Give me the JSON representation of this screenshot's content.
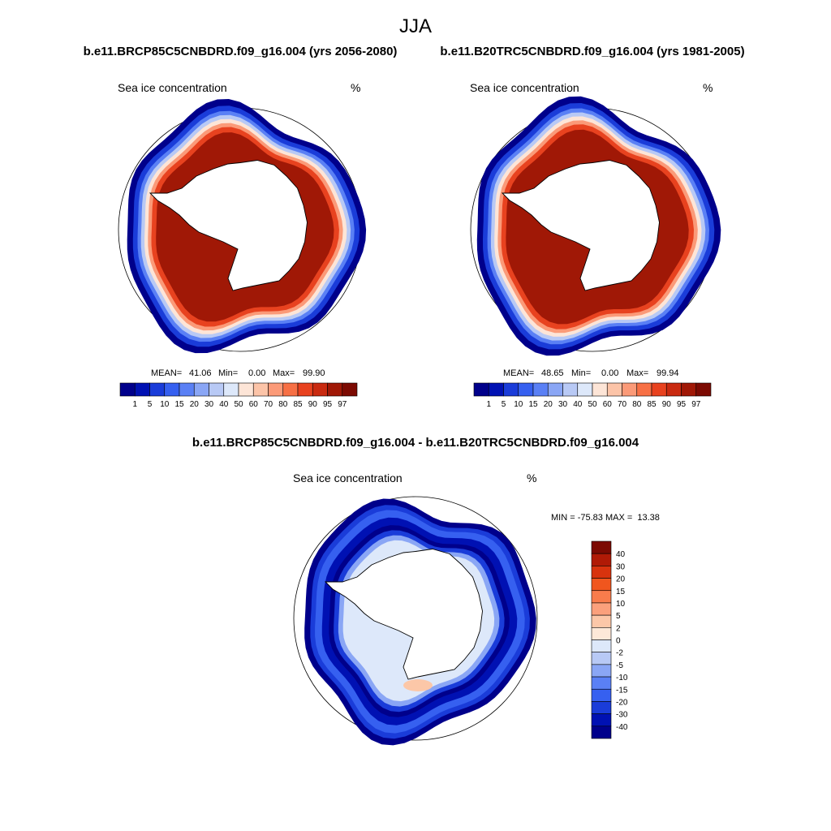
{
  "page": {
    "season_title": "JJA",
    "panel_left_title": "b.e11.BRCP85C5CNBDRD.f09_g16.004 (yrs 2056-2080)",
    "panel_right_title": "b.e11.B20TRC5CNBDRD.f09_g16.004 (yrs 1981-2005)",
    "panel_diff_title": "b.e11.BRCP85C5CNBDRD.f09_g16.004 - b.e11.B20TRC5CNBDRD.f09_g16.004"
  },
  "chart_data": [
    {
      "type": "heatmap",
      "projection": "south-polar-stereographic",
      "title": "b.e11.BRCP85C5CNBDRD.f09_g16.004 (yrs 2056-2080)",
      "variable_label": "Sea ice concentration",
      "units": "%",
      "stats": {
        "mean_label": "MEAN=",
        "mean": "41.06",
        "min_label": "Min=",
        "min": "0.00",
        "max_label": "Max=",
        "max": "99.90"
      },
      "colorbar": {
        "orientation": "horizontal",
        "levels": [
          "1",
          "5",
          "10",
          "15",
          "20",
          "30",
          "40",
          "50",
          "60",
          "70",
          "80",
          "85",
          "90",
          "95",
          "97"
        ],
        "colors": [
          "#00008b",
          "#0011b3",
          "#1a3cd9",
          "#3660f0",
          "#5a80f5",
          "#8aa6f5",
          "#b8c9f5",
          "#dde8fa",
          "#fde5d7",
          "#fcc4a8",
          "#fb9a78",
          "#f77045",
          "#e8421f",
          "#c92a10",
          "#a01806",
          "#7c0a02"
        ]
      },
      "ice_edge_lat_approx": -60
    },
    {
      "type": "heatmap",
      "projection": "south-polar-stereographic",
      "title": "b.e11.B20TRC5CNBDRD.f09_g16.004 (yrs 1981-2005)",
      "variable_label": "Sea ice concentration",
      "units": "%",
      "stats": {
        "mean_label": "MEAN=",
        "mean": "48.65",
        "min_label": "Min=",
        "min": "0.00",
        "max_label": "Max=",
        "max": "99.94"
      },
      "colorbar": {
        "orientation": "horizontal",
        "levels": [
          "1",
          "5",
          "10",
          "15",
          "20",
          "30",
          "40",
          "50",
          "60",
          "70",
          "80",
          "85",
          "90",
          "95",
          "97"
        ],
        "colors": [
          "#00008b",
          "#0011b3",
          "#1a3cd9",
          "#3660f0",
          "#5a80f5",
          "#8aa6f5",
          "#b8c9f5",
          "#dde8fa",
          "#fde5d7",
          "#fcc4a8",
          "#fb9a78",
          "#f77045",
          "#e8421f",
          "#c92a10",
          "#a01806",
          "#7c0a02"
        ]
      },
      "ice_edge_lat_approx": -57
    },
    {
      "type": "heatmap",
      "projection": "south-polar-stereographic",
      "title": "b.e11.BRCP85C5CNBDRD.f09_g16.004 - b.e11.B20TRC5CNBDRD.f09_g16.004",
      "variable_label": "Sea ice concentration",
      "units": "%",
      "stats_text": "MIN = -75.83 MAX =  13.38",
      "min": -75.83,
      "max": 13.38,
      "colorbar": {
        "orientation": "vertical",
        "levels": [
          "40",
          "30",
          "20",
          "15",
          "10",
          "5",
          "2",
          "0",
          "-2",
          "-5",
          "-10",
          "-15",
          "-20",
          "-30",
          "-40"
        ],
        "colors": [
          "#7c0a02",
          "#b01a06",
          "#d8330e",
          "#f0561e",
          "#f87c4c",
          "#fba07c",
          "#fcc7a8",
          "#fde8d8",
          "#dde8fa",
          "#b8c9f5",
          "#8aa6f5",
          "#5a80f5",
          "#3660f0",
          "#1a3cd9",
          "#0011b3",
          "#00008b"
        ]
      }
    }
  ]
}
